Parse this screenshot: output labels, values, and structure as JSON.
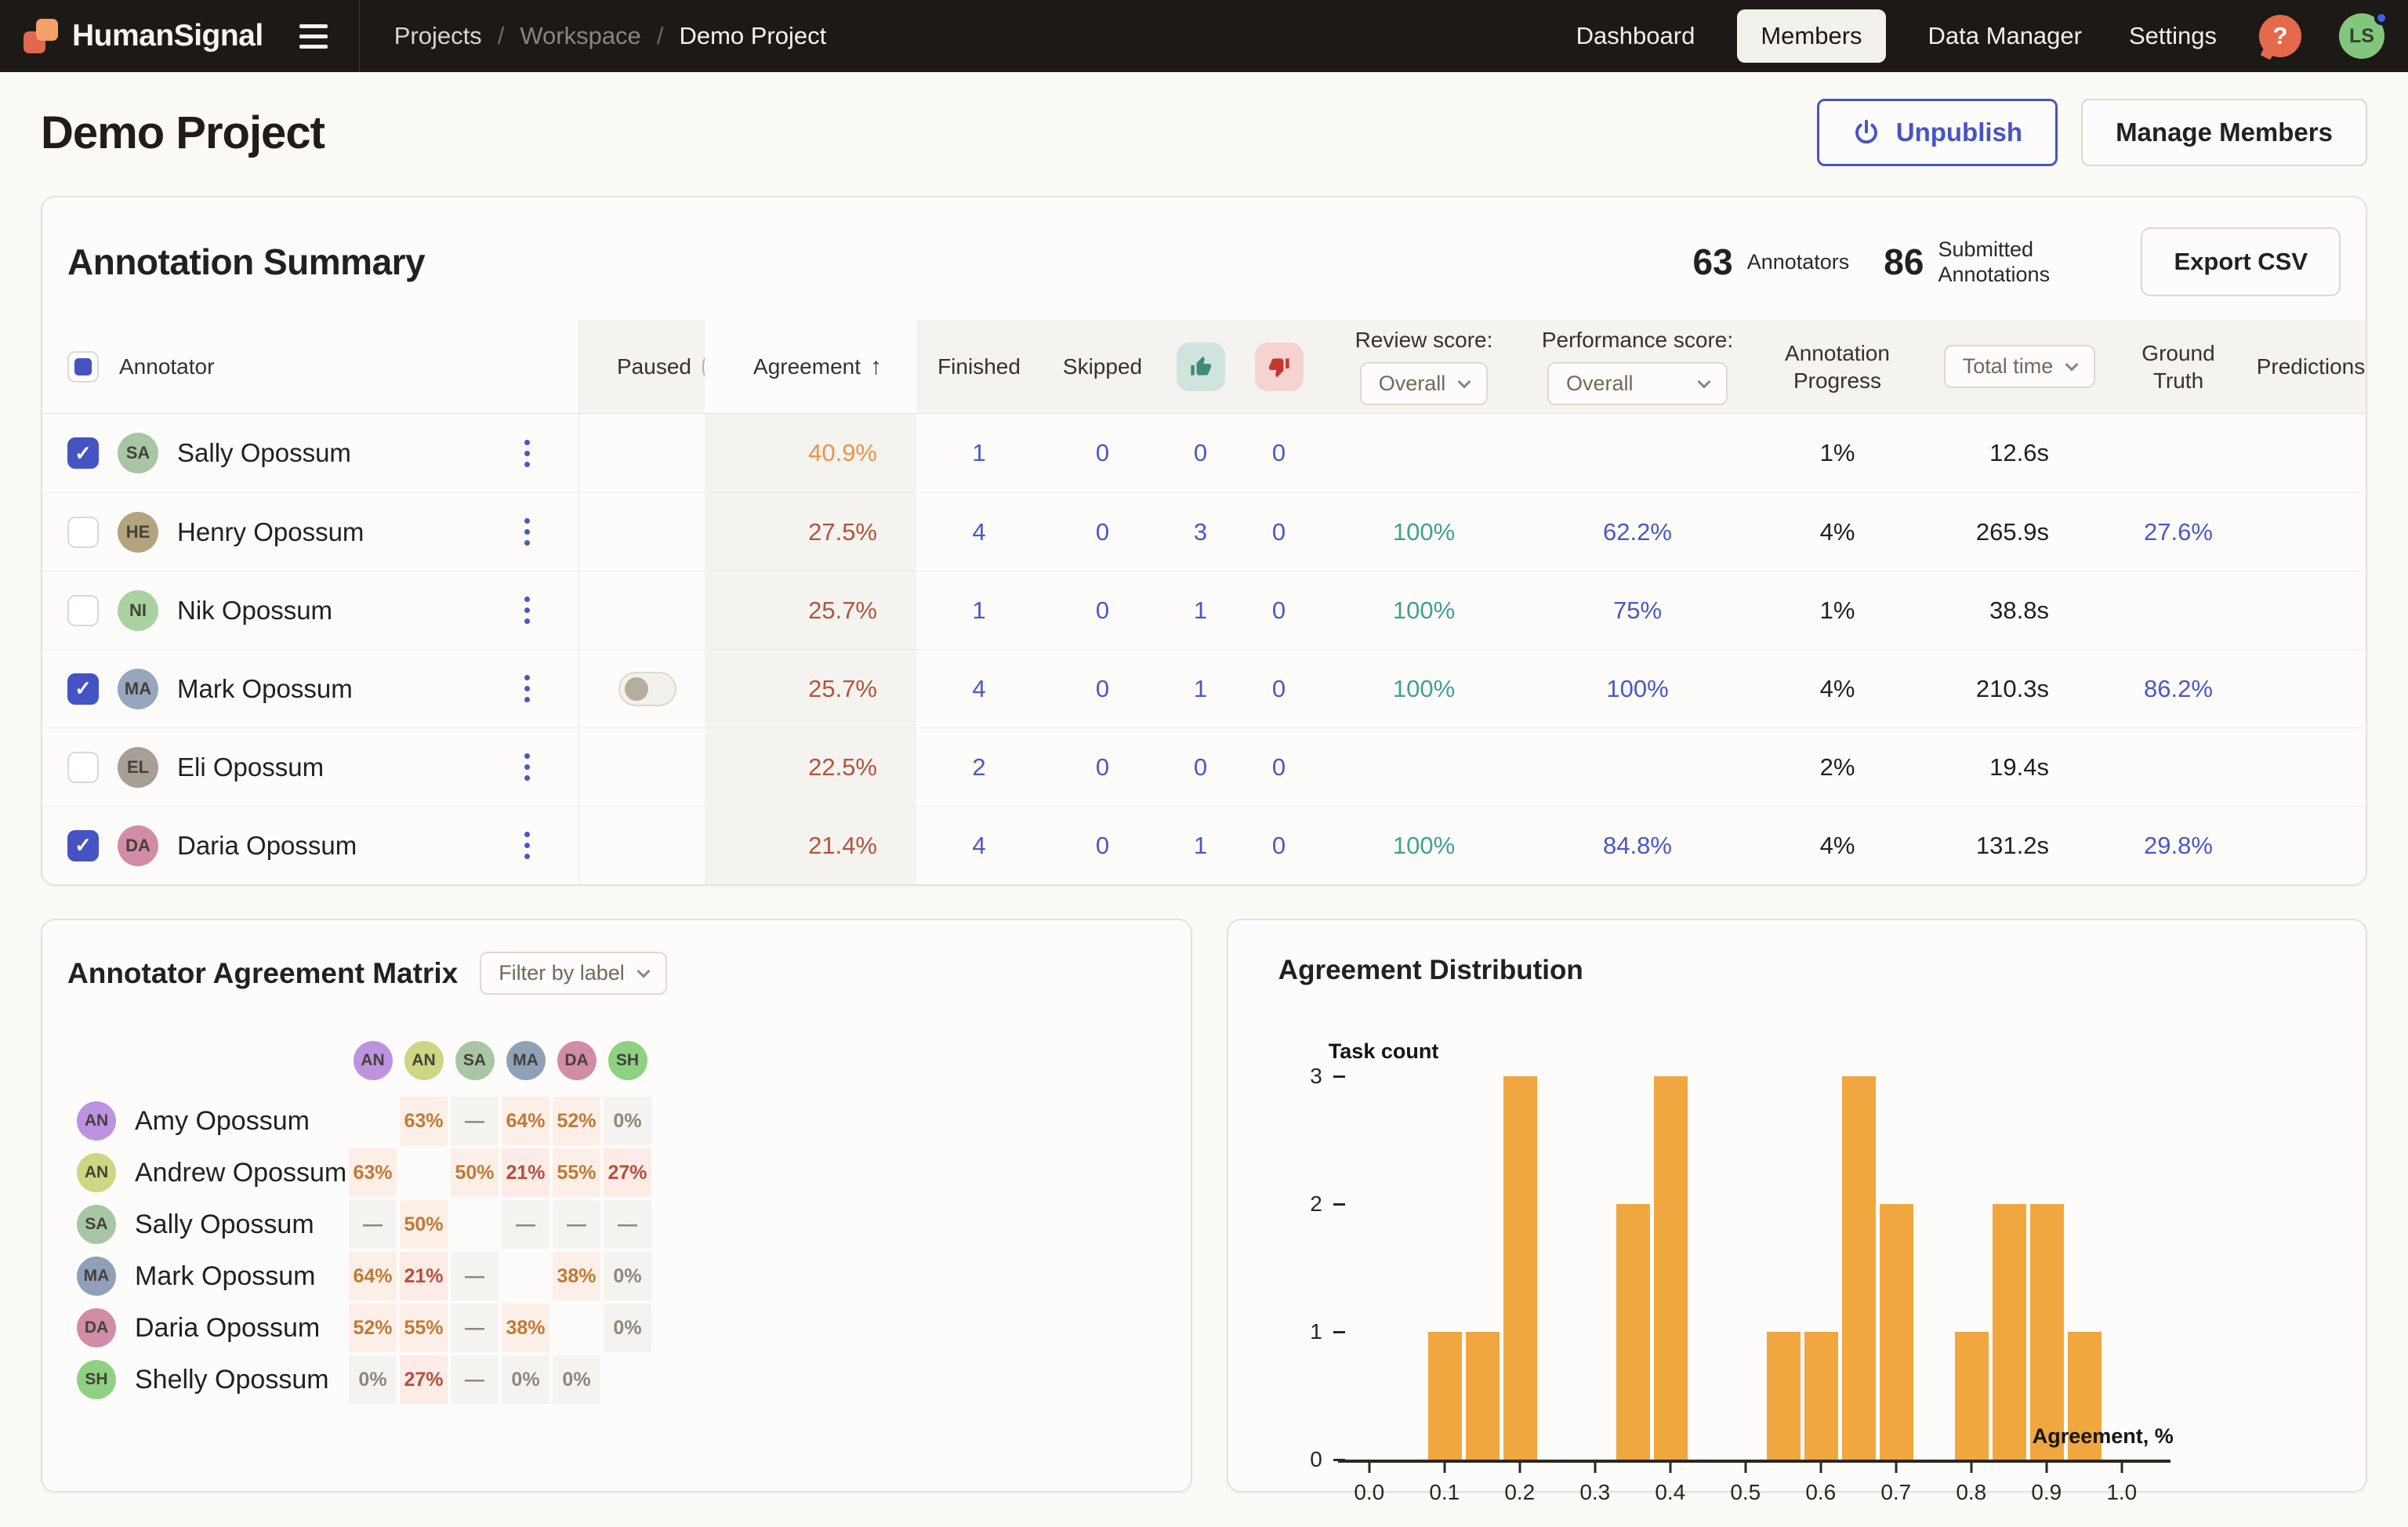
{
  "icons": {
    "question": "?",
    "check": "✓",
    "sort_up": "↑"
  },
  "colors": {
    "accent": "#4753c7",
    "teal": "#3fa28c",
    "agreement_orange": "#e8944c",
    "agreement_rust": "#b2543c",
    "thumb_up": "#3e8b7a",
    "thumb_down": "#c2392f",
    "bar": "#f0a73f"
  },
  "navbar": {
    "logo_text": "HumanSignal",
    "breadcrumb": [
      "Projects",
      "Workspace",
      "Demo Project"
    ],
    "items": [
      "Dashboard",
      "Members",
      "Data Manager",
      "Settings"
    ],
    "avatar_initials": "LS"
  },
  "page": {
    "title": "Demo Project",
    "unpublish_label": "Unpublish",
    "manage_members_label": "Manage Members"
  },
  "summary": {
    "title": "Annotation Summary",
    "annotators_count": "63",
    "annotators_label": "Annotators",
    "submitted_count": "86",
    "submitted_label": "Submitted Annotations",
    "export_label": "Export CSV"
  },
  "table": {
    "headers": {
      "annotator": "Annotator",
      "paused": "Paused",
      "agreement": "Agreement",
      "finished": "Finished",
      "skipped": "Skipped",
      "review_score": "Review score:",
      "performance_score": "Performance score:",
      "annotation_progress": "Annotation Progress",
      "ground_truth": "Ground Truth",
      "predictions": "Predictions"
    },
    "review_score_value": "Overall",
    "performance_score_value": "Overall",
    "total_time_value": "Total time",
    "rows": [
      {
        "name": "Sally Opossum",
        "initials": "SA",
        "avatar_color": "#a9c6a4",
        "checked": true,
        "paused_toggle": false,
        "agreement": "40.9%",
        "agreement_color": "orange",
        "finished": "1",
        "skipped": "0",
        "accepted": "0",
        "rejected": "0",
        "review_score": "",
        "performance_score": "",
        "annotation_progress": "1%",
        "total_time": "12.6s",
        "ground_truth": "",
        "predictions": ""
      },
      {
        "name": "Henry Opossum",
        "initials": "HE",
        "avatar_color": "#b3a37e",
        "checked": false,
        "paused_toggle": false,
        "agreement": "27.5%",
        "agreement_color": "rust",
        "finished": "4",
        "skipped": "0",
        "accepted": "3",
        "rejected": "0",
        "review_score": "100%",
        "performance_score": "62.2%",
        "annotation_progress": "4%",
        "total_time": "265.9s",
        "ground_truth": "27.6%",
        "predictions": ""
      },
      {
        "name": "Nik Opossum",
        "initials": "NI",
        "avatar_color": "#a9d2a0",
        "checked": false,
        "paused_toggle": false,
        "agreement": "25.7%",
        "agreement_color": "rust",
        "finished": "1",
        "skipped": "0",
        "accepted": "1",
        "rejected": "0",
        "review_score": "100%",
        "performance_score": "75%",
        "annotation_progress": "1%",
        "total_time": "38.8s",
        "ground_truth": "",
        "predictions": ""
      },
      {
        "name": "Mark Opossum",
        "initials": "MA",
        "avatar_color": "#96a7bd",
        "checked": true,
        "paused_toggle": true,
        "agreement": "25.7%",
        "agreement_color": "rust",
        "finished": "4",
        "skipped": "0",
        "accepted": "1",
        "rejected": "0",
        "review_score": "100%",
        "performance_score": "100%",
        "annotation_progress": "4%",
        "total_time": "210.3s",
        "ground_truth": "86.2%",
        "predictions": ""
      },
      {
        "name": "Eli Opossum",
        "initials": "EL",
        "avatar_color": "#a79f96",
        "checked": false,
        "paused_toggle": false,
        "agreement": "22.5%",
        "agreement_color": "rust",
        "finished": "2",
        "skipped": "0",
        "accepted": "0",
        "rejected": "0",
        "review_score": "",
        "performance_score": "",
        "annotation_progress": "2%",
        "total_time": "19.4s",
        "ground_truth": "",
        "predictions": ""
      },
      {
        "name": "Daria Opossum",
        "initials": "DA",
        "avatar_color": "#d18ca6",
        "checked": true,
        "paused_toggle": false,
        "agreement": "21.4%",
        "agreement_color": "rust",
        "finished": "4",
        "skipped": "0",
        "accepted": "1",
        "rejected": "0",
        "review_score": "100%",
        "performance_score": "84.8%",
        "annotation_progress": "4%",
        "total_time": "131.2s",
        "ground_truth": "29.8%",
        "predictions": ""
      }
    ]
  },
  "matrix": {
    "title": "Annotator Agreement Matrix",
    "filter_label": "Filter by label",
    "columns": [
      {
        "initials": "AN",
        "color": "#bd93e0"
      },
      {
        "initials": "AN",
        "color": "#ccd683"
      },
      {
        "initials": "SA",
        "color": "#a9c6a4"
      },
      {
        "initials": "MA",
        "color": "#8fa0b8"
      },
      {
        "initials": "DA",
        "color": "#d18ca6"
      },
      {
        "initials": "SH",
        "color": "#8ed182"
      }
    ],
    "rows": [
      {
        "name": "Amy Opossum",
        "initials": "AN",
        "color": "#bd93e0",
        "cells": [
          {
            "text": "",
            "type": "self"
          },
          {
            "text": "63%",
            "type": "orange"
          },
          {
            "text": "—",
            "type": "dash"
          },
          {
            "text": "64%",
            "type": "orange"
          },
          {
            "text": "52%",
            "type": "orange"
          },
          {
            "text": "0%",
            "type": "zero"
          }
        ]
      },
      {
        "name": "Andrew Opossum",
        "initials": "AN",
        "color": "#ccd683",
        "cells": [
          {
            "text": "63%",
            "type": "orange"
          },
          {
            "text": "",
            "type": "self"
          },
          {
            "text": "50%",
            "type": "orange"
          },
          {
            "text": "21%",
            "type": "red"
          },
          {
            "text": "55%",
            "type": "orange"
          },
          {
            "text": "27%",
            "type": "red"
          }
        ]
      },
      {
        "name": "Sally Opossum",
        "initials": "SA",
        "color": "#a9c6a4",
        "cells": [
          {
            "text": "—",
            "type": "dash"
          },
          {
            "text": "50%",
            "type": "orange"
          },
          {
            "text": "",
            "type": "self"
          },
          {
            "text": "—",
            "type": "dash"
          },
          {
            "text": "—",
            "type": "dash"
          },
          {
            "text": "—",
            "type": "dash"
          }
        ]
      },
      {
        "name": "Mark Opossum",
        "initials": "MA",
        "color": "#8fa0b8",
        "cells": [
          {
            "text": "64%",
            "type": "orange"
          },
          {
            "text": "21%",
            "type": "red"
          },
          {
            "text": "—",
            "type": "dash"
          },
          {
            "text": "",
            "type": "self"
          },
          {
            "text": "38%",
            "type": "orange"
          },
          {
            "text": "0%",
            "type": "zero"
          }
        ]
      },
      {
        "name": "Daria Opossum",
        "initials": "DA",
        "color": "#d18ca6",
        "cells": [
          {
            "text": "52%",
            "type": "orange"
          },
          {
            "text": "55%",
            "type": "orange"
          },
          {
            "text": "—",
            "type": "dash"
          },
          {
            "text": "38%",
            "type": "orange"
          },
          {
            "text": "",
            "type": "self"
          },
          {
            "text": "0%",
            "type": "zero"
          }
        ]
      },
      {
        "name": "Shelly Opossum",
        "initials": "SH",
        "color": "#8ed182",
        "cells": [
          {
            "text": "0%",
            "type": "zero"
          },
          {
            "text": "27%",
            "type": "red"
          },
          {
            "text": "—",
            "type": "dash"
          },
          {
            "text": "0%",
            "type": "zero"
          },
          {
            "text": "0%",
            "type": "zero"
          },
          {
            "text": "",
            "type": "self"
          }
        ]
      }
    ]
  },
  "chart_data": {
    "type": "bar",
    "title": "Agreement Distribution",
    "xlabel": "Agreement, %",
    "ylabel": "Task count",
    "xlim": [
      0,
      1
    ],
    "ylim": [
      0,
      3
    ],
    "bin_width": 0.05,
    "grid": false,
    "bar_color": "#f0a73f",
    "xticks": [
      "0.0",
      "0.1",
      "0.2",
      "0.3",
      "0.4",
      "0.5",
      "0.6",
      "0.7",
      "0.8",
      "0.9",
      "1.0"
    ],
    "yticks": [
      0,
      1,
      2,
      3
    ],
    "bars": [
      {
        "center": 0.1,
        "count": 1
      },
      {
        "center": 0.15,
        "count": 1
      },
      {
        "center": 0.2,
        "count": 3
      },
      {
        "center": 0.35,
        "count": 2
      },
      {
        "center": 0.4,
        "count": 3
      },
      {
        "center": 0.55,
        "count": 1
      },
      {
        "center": 0.6,
        "count": 1
      },
      {
        "center": 0.65,
        "count": 3
      },
      {
        "center": 0.7,
        "count": 2
      },
      {
        "center": 0.8,
        "count": 1
      },
      {
        "center": 0.85,
        "count": 2
      },
      {
        "center": 0.9,
        "count": 2
      },
      {
        "center": 0.95,
        "count": 1
      }
    ]
  }
}
